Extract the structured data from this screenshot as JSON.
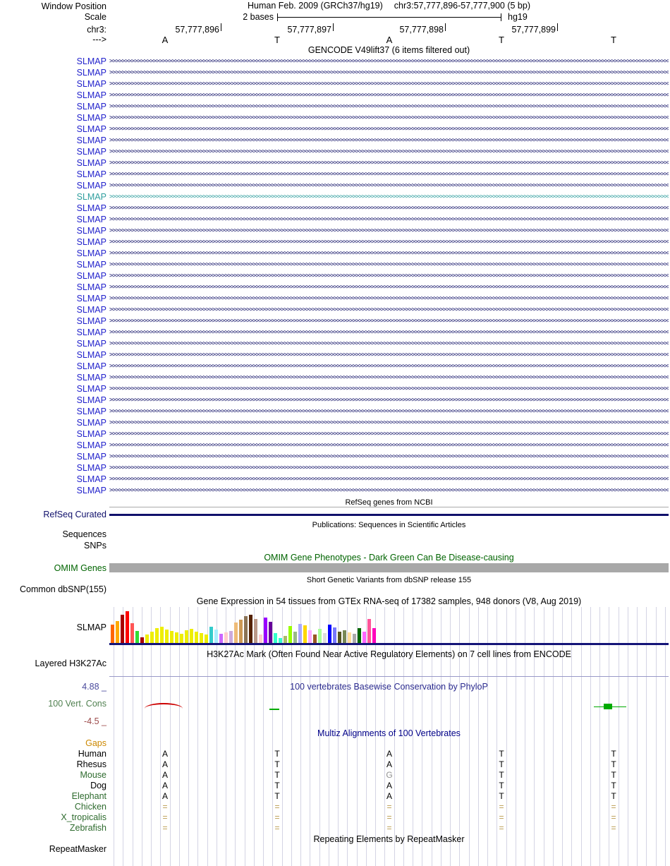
{
  "header": {
    "assembly": "Human Feb. 2009 (GRCh37/hg19)",
    "position": "chr3:57,777,896-57,777,900 (5 bp)"
  },
  "sidebar": {
    "window_position": "Window Position",
    "scale": "Scale",
    "chrom": "chr3:",
    "strand": "--->"
  },
  "ruler": {
    "scale_text": "2 bases",
    "genome": "hg19",
    "coordinates": [
      "57,777,896",
      "57,777,897",
      "57,777,898",
      "57,777,899"
    ],
    "bases": [
      "A",
      "T",
      "A",
      "T",
      "T"
    ]
  },
  "gencode": {
    "title": "GENCODE V49lift37 (6 items filtered out)",
    "highlight_index": 12,
    "transcript_labels": [
      "SLMAP",
      "SLMAP",
      "SLMAP",
      "SLMAP",
      "SLMAP",
      "SLMAP",
      "SLMAP",
      "SLMAP",
      "SLMAP",
      "SLMAP",
      "SLMAP",
      "SLMAP",
      "SLMAP",
      "SLMAP",
      "SLMAP",
      "SLMAP",
      "SLMAP",
      "SLMAP",
      "SLMAP",
      "SLMAP",
      "SLMAP",
      "SLMAP",
      "SLMAP",
      "SLMAP",
      "SLMAP",
      "SLMAP",
      "SLMAP",
      "SLMAP",
      "SLMAP",
      "SLMAP",
      "SLMAP",
      "SLMAP",
      "SLMAP",
      "SLMAP",
      "SLMAP",
      "SLMAP",
      "SLMAP",
      "SLMAP",
      "SLMAP"
    ]
  },
  "refseq": {
    "title": "RefSeq genes from NCBI",
    "label": "RefSeq Curated"
  },
  "publications": {
    "title": "Publications: Sequences in Scientific Articles",
    "sequences_label": "Sequences",
    "snps_label": "SNPs"
  },
  "omim": {
    "title": "OMIM Gene Phenotypes - Dark Green Can Be Disease-causing",
    "label": "OMIM Genes"
  },
  "dbsnp": {
    "title": "Short Genetic Variants from dbSNP release 155",
    "label": "Common dbSNP(155)"
  },
  "gtex": {
    "title": "Gene Expression in 54 tissues from GTEx RNA-seq of 17382 samples, 948 donors (V8, Aug 2019)",
    "label": "SLMAP"
  },
  "chart_data": {
    "type": "bar",
    "title": "GTEx gene expression for SLMAP in 54 tissues (bar heights estimated in px; tissue names not visible in image)",
    "legend": "none",
    "baseline_color": "#151578",
    "bars": [
      {
        "color": "#FF6600",
        "value": 26
      },
      {
        "color": "#FFAA00",
        "value": 31
      },
      {
        "color": "#AA0000",
        "value": 40
      },
      {
        "color": "#FF0000",
        "value": 45
      },
      {
        "color": "#FF5555",
        "value": 28
      },
      {
        "color": "#33DD33",
        "value": 17
      },
      {
        "color": "#AA0000",
        "value": 8
      },
      {
        "color": "#EEEE00",
        "value": 12
      },
      {
        "color": "#EEEE00",
        "value": 16
      },
      {
        "color": "#EEEE00",
        "value": 21
      },
      {
        "color": "#EEEE00",
        "value": 23
      },
      {
        "color": "#EEEE00",
        "value": 19
      },
      {
        "color": "#EEEE00",
        "value": 17
      },
      {
        "color": "#EEEE00",
        "value": 15
      },
      {
        "color": "#EEEE00",
        "value": 13
      },
      {
        "color": "#EEEE00",
        "value": 18
      },
      {
        "color": "#EEEE00",
        "value": 20
      },
      {
        "color": "#EEEE00",
        "value": 16
      },
      {
        "color": "#EEEE00",
        "value": 14
      },
      {
        "color": "#EEEE00",
        "value": 12
      },
      {
        "color": "#33CCCC",
        "value": 23
      },
      {
        "color": "#AAEEFF",
        "value": 19
      },
      {
        "color": "#CC66FF",
        "value": 13
      },
      {
        "color": "#FFCCCC",
        "value": 15
      },
      {
        "color": "#CCAADD",
        "value": 17
      },
      {
        "color": "#EEBB77",
        "value": 29
      },
      {
        "color": "#CC9955",
        "value": 33
      },
      {
        "color": "#8B7355",
        "value": 38
      },
      {
        "color": "#552200",
        "value": 40
      },
      {
        "color": "#BB9988",
        "value": 34
      },
      {
        "color": "#FFCCCC",
        "value": 12
      },
      {
        "color": "#9900FF",
        "value": 36
      },
      {
        "color": "#660099",
        "value": 30
      },
      {
        "color": "#33FFCC",
        "value": 14
      },
      {
        "color": "#33FFCC",
        "value": 7
      },
      {
        "color": "#AABB66",
        "value": 10
      },
      {
        "color": "#99FF00",
        "value": 24
      },
      {
        "color": "#99BB88",
        "value": 16
      },
      {
        "color": "#AAAAFF",
        "value": 27
      },
      {
        "color": "#FFD700",
        "value": 25
      },
      {
        "color": "#FFAAFF",
        "value": 18
      },
      {
        "color": "#995522",
        "value": 12
      },
      {
        "color": "#AAFF99",
        "value": 20
      },
      {
        "color": "#DDDDDD",
        "value": 14
      },
      {
        "color": "#0000FF",
        "value": 26
      },
      {
        "color": "#7777FF",
        "value": 22
      },
      {
        "color": "#555522",
        "value": 16
      },
      {
        "color": "#778855",
        "value": 18
      },
      {
        "color": "#FFDD99",
        "value": 15
      },
      {
        "color": "#AAAAAA",
        "value": 13
      },
      {
        "color": "#006600",
        "value": 21
      },
      {
        "color": "#FF66FF",
        "value": 16
      },
      {
        "color": "#FF5599",
        "value": 34
      },
      {
        "color": "#FF00BB",
        "value": 21
      }
    ]
  },
  "h3k27ac": {
    "title": "H3K27Ac Mark (Often Found Near Active Regulatory Elements) on 7 cell lines from ENCODE",
    "label": "Layered H3K27Ac"
  },
  "conservation": {
    "title": "100 vertebrates Basewise Conservation by PhyloP",
    "label": "100 Vert. Cons",
    "max_label": "4.88 _",
    "min_label": "-4.5 _"
  },
  "multiz": {
    "title": "Multiz Alignments of 100 Vertebrates",
    "rows": [
      {
        "label": "Gaps",
        "label_color": "#cc8800",
        "cells": [
          "",
          "",
          "",
          "",
          ""
        ],
        "cell_colors": []
      },
      {
        "label": "Human",
        "label_color": "#000000",
        "cells": [
          "A",
          "T",
          "A",
          "T",
          "T"
        ],
        "cell_colors": [
          "#000000",
          "#000000",
          "#000000",
          "#000000",
          "#000000"
        ]
      },
      {
        "label": "Rhesus",
        "label_color": "#000000",
        "cells": [
          "A",
          "T",
          "A",
          "T",
          "T"
        ],
        "cell_colors": [
          "#000000",
          "#000000",
          "#000000",
          "#000000",
          "#000000"
        ]
      },
      {
        "label": "Mouse",
        "label_color": "#2e6b2e",
        "cells": [
          "A",
          "T",
          "G",
          "T",
          "T"
        ],
        "cell_colors": [
          "#000000",
          "#000000",
          "#909090",
          "#000000",
          "#000000"
        ]
      },
      {
        "label": "Dog",
        "label_color": "#000000",
        "cells": [
          "A",
          "T",
          "A",
          "T",
          "T"
        ],
        "cell_colors": [
          "#000000",
          "#000000",
          "#000000",
          "#000000",
          "#000000"
        ]
      },
      {
        "label": "Elephant",
        "label_color": "#2e6b2e",
        "cells": [
          "A",
          "T",
          "A",
          "T",
          "T"
        ],
        "cell_colors": [
          "#000000",
          "#000000",
          "#000000",
          "#000000",
          "#000000"
        ]
      },
      {
        "label": "Chicken",
        "label_color": "#2e6b2e",
        "cells": [
          "=",
          "=",
          "=",
          "=",
          "="
        ],
        "cell_colors": [
          "#b8984a",
          "#b8984a",
          "#b8984a",
          "#b8984a",
          "#b8984a"
        ]
      },
      {
        "label": "X_tropicalis",
        "label_color": "#2e6b2e",
        "cells": [
          "=",
          "=",
          "=",
          "=",
          "="
        ],
        "cell_colors": [
          "#b8984a",
          "#b8984a",
          "#b8984a",
          "#b8984a",
          "#b8984a"
        ]
      },
      {
        "label": "Zebrafish",
        "label_color": "#2e6b2e",
        "cells": [
          "=",
          "=",
          "=",
          "=",
          "="
        ],
        "cell_colors": [
          "#b8984a",
          "#b8984a",
          "#b8984a",
          "#b8984a",
          "#b8984a"
        ]
      }
    ]
  },
  "repeatmasker": {
    "title": "Repeating Elements by RepeatMasker",
    "label": "RepeatMasker"
  },
  "colors": {
    "gene_blue": "#2222cc",
    "teal_highlight": "#2f9e9e",
    "arrow_navy": "#16166b",
    "refseq_navy": "#10106b",
    "omim_gray": "#a8a8a8",
    "omim_green": "#006400",
    "gtex_baseline": "#151578",
    "guideline": "#d4d4e4",
    "separator_gray": "#aaaaaa",
    "separator_blue": "#9898c8",
    "phylop_title_blue": "#2b2b8f",
    "multiz_title_blue": "#000088",
    "cons_red": "#cc0000",
    "cons_green": "#00aa00",
    "cons_max_color": "#4a4a9c",
    "cons_min_color": "#9c4a4a",
    "cons_label_color": "#508050",
    "gaps_orange": "#cc8800",
    "species_green": "#2e6b2e",
    "tan_equals": "#b8984a"
  }
}
